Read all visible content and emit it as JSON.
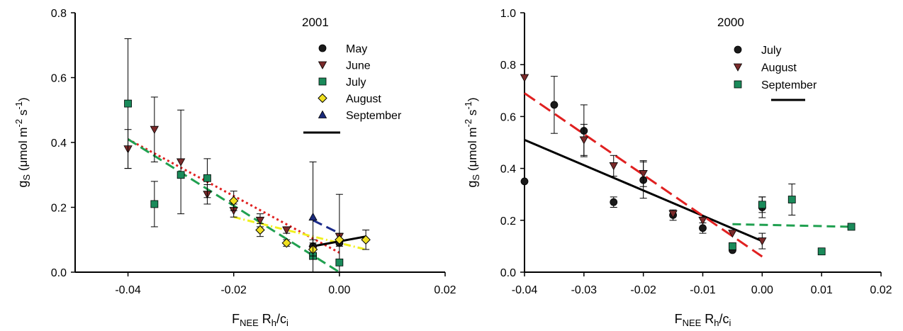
{
  "chart_data": [
    {
      "type": "scatter",
      "title": "2001",
      "xlabel": "F_NEE R_h/c_i",
      "xlabel_parts": {
        "f": "F",
        "nee": "NEE",
        "rh": " R",
        "h": "h",
        "slash": "/c",
        "i": "i"
      },
      "ylabel_parts": {
        "g": "g",
        "s": "S",
        "rest": " (μmol m",
        "exp1": "-2",
        "s2": " s",
        "exp2": "-1",
        "close": ")"
      },
      "xlim": [
        -0.05,
        0.02
      ],
      "ylim": [
        0.0,
        0.8
      ],
      "xticks": [
        -0.04,
        -0.02,
        0.0,
        0.02
      ],
      "xtick_labels": [
        "-0.04",
        "-0.02",
        "0.00",
        "0.02"
      ],
      "yticks": [
        0.0,
        0.2,
        0.4,
        0.6,
        0.8
      ],
      "ytick_labels": [
        "0.0",
        "0.2",
        "0.4",
        "0.6",
        "0.8"
      ],
      "legend_position": "top-right",
      "series": [
        {
          "name": "May",
          "marker": "circle",
          "color": "#1a1a1a",
          "x": [
            -0.005,
            0.0
          ],
          "y": [
            0.08,
            0.09
          ],
          "err": [
            0.0,
            0.0
          ]
        },
        {
          "name": "June",
          "marker": "triangle-down",
          "color": "#7a2a2a",
          "x": [
            -0.04,
            -0.035,
            -0.03,
            -0.025,
            -0.02,
            -0.015,
            -0.01,
            -0.005,
            0.0
          ],
          "y": [
            0.38,
            0.44,
            0.34,
            0.24,
            0.19,
            0.16,
            0.13,
            0.07,
            0.11
          ],
          "err": [
            0.06,
            0.1,
            0.16,
            0.03,
            0.02,
            0.02,
            0.01,
            0.03,
            0.13
          ]
        },
        {
          "name": "July",
          "marker": "square",
          "color": "#1a8a5a",
          "x": [
            -0.04,
            -0.035,
            -0.03,
            -0.025,
            -0.005,
            0.0
          ],
          "y": [
            0.52,
            0.21,
            0.3,
            0.29,
            0.05,
            0.03
          ],
          "err": [
            0.2,
            0.07,
            0.0,
            0.06,
            0.0,
            0.0
          ]
        },
        {
          "name": "August",
          "marker": "diamond",
          "color": "#f0e020",
          "x": [
            -0.02,
            -0.015,
            -0.01,
            -0.005,
            0.0,
            0.005
          ],
          "y": [
            0.22,
            0.13,
            0.09,
            0.07,
            0.1,
            0.1
          ],
          "err": [
            0.03,
            0.02,
            0.01,
            0.02,
            0.02,
            0.03
          ]
        },
        {
          "name": "September",
          "marker": "triangle-up",
          "color": "#1a2a7a",
          "x": [
            -0.005
          ],
          "y": [
            0.17
          ],
          "err": [
            0.17
          ]
        }
      ],
      "fit_lines": [
        {
          "color": "#e02020",
          "dash": "3,4",
          "x": [
            -0.04,
            0.0
          ],
          "y": [
            0.41,
            0.06
          ]
        },
        {
          "color": "#20a050",
          "dash": "14,7",
          "x": [
            -0.04,
            0.0
          ],
          "y": [
            0.41,
            0.0
          ]
        },
        {
          "color": "#f0f020",
          "dash": "10,4,2,4",
          "x": [
            -0.02,
            0.005
          ],
          "y": [
            0.17,
            0.07
          ]
        },
        {
          "color": "#1a2a8a",
          "dash": "14,7",
          "x": [
            -0.005,
            0.0
          ],
          "y": [
            0.16,
            0.12
          ]
        },
        {
          "color": "#000000",
          "dash": "",
          "x": [
            -0.005,
            0.005
          ],
          "y": [
            0.08,
            0.11
          ]
        }
      ]
    },
    {
      "type": "scatter",
      "title": "2000",
      "xlabel": "F_NEE R_h/c_i",
      "xlabel_parts": {
        "f": "F",
        "nee": "NEE",
        "rh": " R",
        "h": "h",
        "slash": "/c",
        "i": "i"
      },
      "ylabel_parts": {
        "g": "g",
        "s": "S",
        "rest": " (μmol m",
        "exp1": "-2",
        "s2": " s",
        "exp2": "-1",
        "close": ")"
      },
      "xlim": [
        -0.04,
        0.02
      ],
      "ylim": [
        0.0,
        1.0
      ],
      "xticks": [
        -0.04,
        -0.03,
        -0.02,
        -0.01,
        0.0,
        0.01,
        0.02
      ],
      "xtick_labels": [
        "-0.04",
        "-0.03",
        "-0.02",
        "-0.01",
        "0.00",
        "0.01",
        "0.02"
      ],
      "yticks": [
        0.0,
        0.2,
        0.4,
        0.6,
        0.8,
        1.0
      ],
      "ytick_labels": [
        "0.0",
        "0.2",
        "0.4",
        "0.6",
        "0.8",
        "1.0"
      ],
      "legend_position": "top-right",
      "series": [
        {
          "name": "July",
          "marker": "circle",
          "color": "#1a1a1a",
          "x": [
            -0.04,
            -0.035,
            -0.03,
            -0.025,
            -0.02,
            -0.015,
            -0.01,
            -0.005,
            0.0
          ],
          "y": [
            0.35,
            0.645,
            0.545,
            0.27,
            0.355,
            0.22,
            0.17,
            0.085,
            0.25
          ],
          "err": [
            0.0,
            0.11,
            0.1,
            0.02,
            0.07,
            0.02,
            0.02,
            0.0,
            0.04
          ]
        },
        {
          "name": "August",
          "marker": "triangle-down",
          "color": "#7a2a2a",
          "x": [
            -0.04,
            -0.03,
            -0.025,
            -0.02,
            -0.015,
            -0.01,
            -0.005,
            0.0
          ],
          "y": [
            0.75,
            0.51,
            0.41,
            0.38,
            0.225,
            0.2,
            0.15,
            0.12
          ],
          "err": [
            0.0,
            0.06,
            0.04,
            0.05,
            0.0,
            0.0,
            0.0,
            0.03
          ]
        },
        {
          "name": "September",
          "marker": "square",
          "color": "#1a8a5a",
          "x": [
            -0.005,
            0.0,
            0.005,
            0.01,
            0.015
          ],
          "y": [
            0.1,
            0.26,
            0.28,
            0.08,
            0.175
          ],
          "err": [
            0.0,
            0.03,
            0.06,
            0.0,
            0.0
          ]
        }
      ],
      "fit_lines": [
        {
          "color": "#000000",
          "dash": "",
          "x": [
            -0.04,
            0.0
          ],
          "y": [
            0.51,
            0.12
          ]
        },
        {
          "color": "#e02020",
          "dash": "18,8",
          "x": [
            -0.04,
            0.0
          ],
          "y": [
            0.69,
            0.06
          ]
        },
        {
          "color": "#20a050",
          "dash": "12,7",
          "x": [
            -0.005,
            0.015
          ],
          "y": [
            0.185,
            0.175
          ]
        }
      ]
    }
  ]
}
